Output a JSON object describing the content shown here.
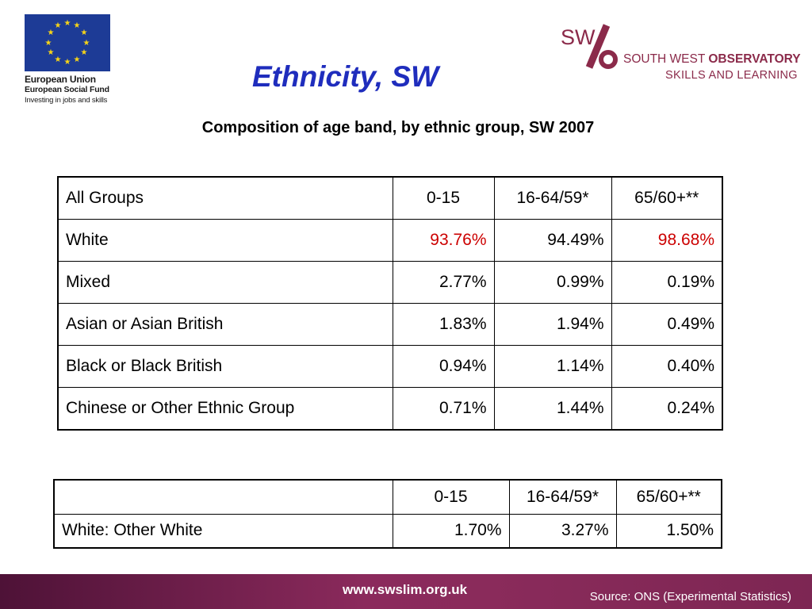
{
  "logos": {
    "eu": {
      "line1": "European Union",
      "line2": "European Social Fund",
      "line3": "Investing in jobs and skills",
      "flag_color": "#1d3b96",
      "star_color": "#f7d417"
    },
    "swo": {
      "mark": "SW%",
      "line1_prefix": "SOUTH WEST ",
      "line1_bold": "OBSERVATORY",
      "line2": "SKILLS AND LEARNING",
      "brand_color": "#8b2a4a"
    }
  },
  "title": "Ethnicity, SW",
  "subtitle": "Composition of age band, by ethnic group, SW 2007",
  "table1": {
    "headers": [
      "All Groups",
      "0-15",
      "16-64/59*",
      "65/60+**"
    ],
    "rows": [
      {
        "label": "White",
        "v": [
          "93.76%",
          "94.49%",
          "98.68%"
        ]
      },
      {
        "label": "Mixed",
        "v": [
          "2.77%",
          "0.99%",
          "0.19%"
        ]
      },
      {
        "label": "Asian or Asian British",
        "v": [
          "1.83%",
          "1.94%",
          "0.49%"
        ]
      },
      {
        "label": "Black or Black British",
        "v": [
          "0.94%",
          "1.14%",
          "0.40%"
        ]
      },
      {
        "label": "Chinese or Other Ethnic Group",
        "v": [
          "0.71%",
          "1.44%",
          "0.24%"
        ]
      }
    ]
  },
  "table2": {
    "headers": [
      "",
      "0-15",
      "16-64/59*",
      "65/60+**"
    ],
    "rows": [
      {
        "label": "White: Other White",
        "v": [
          "1.70%",
          "3.27%",
          "1.50%"
        ]
      }
    ]
  },
  "footer": {
    "url": "www.swslim.org.uk",
    "source": "Source: ONS (Experimental Statistics)"
  },
  "colors": {
    "title": "#1f2dbd",
    "highlight": "#cc0000",
    "footer_band": "#8b2a5c"
  }
}
